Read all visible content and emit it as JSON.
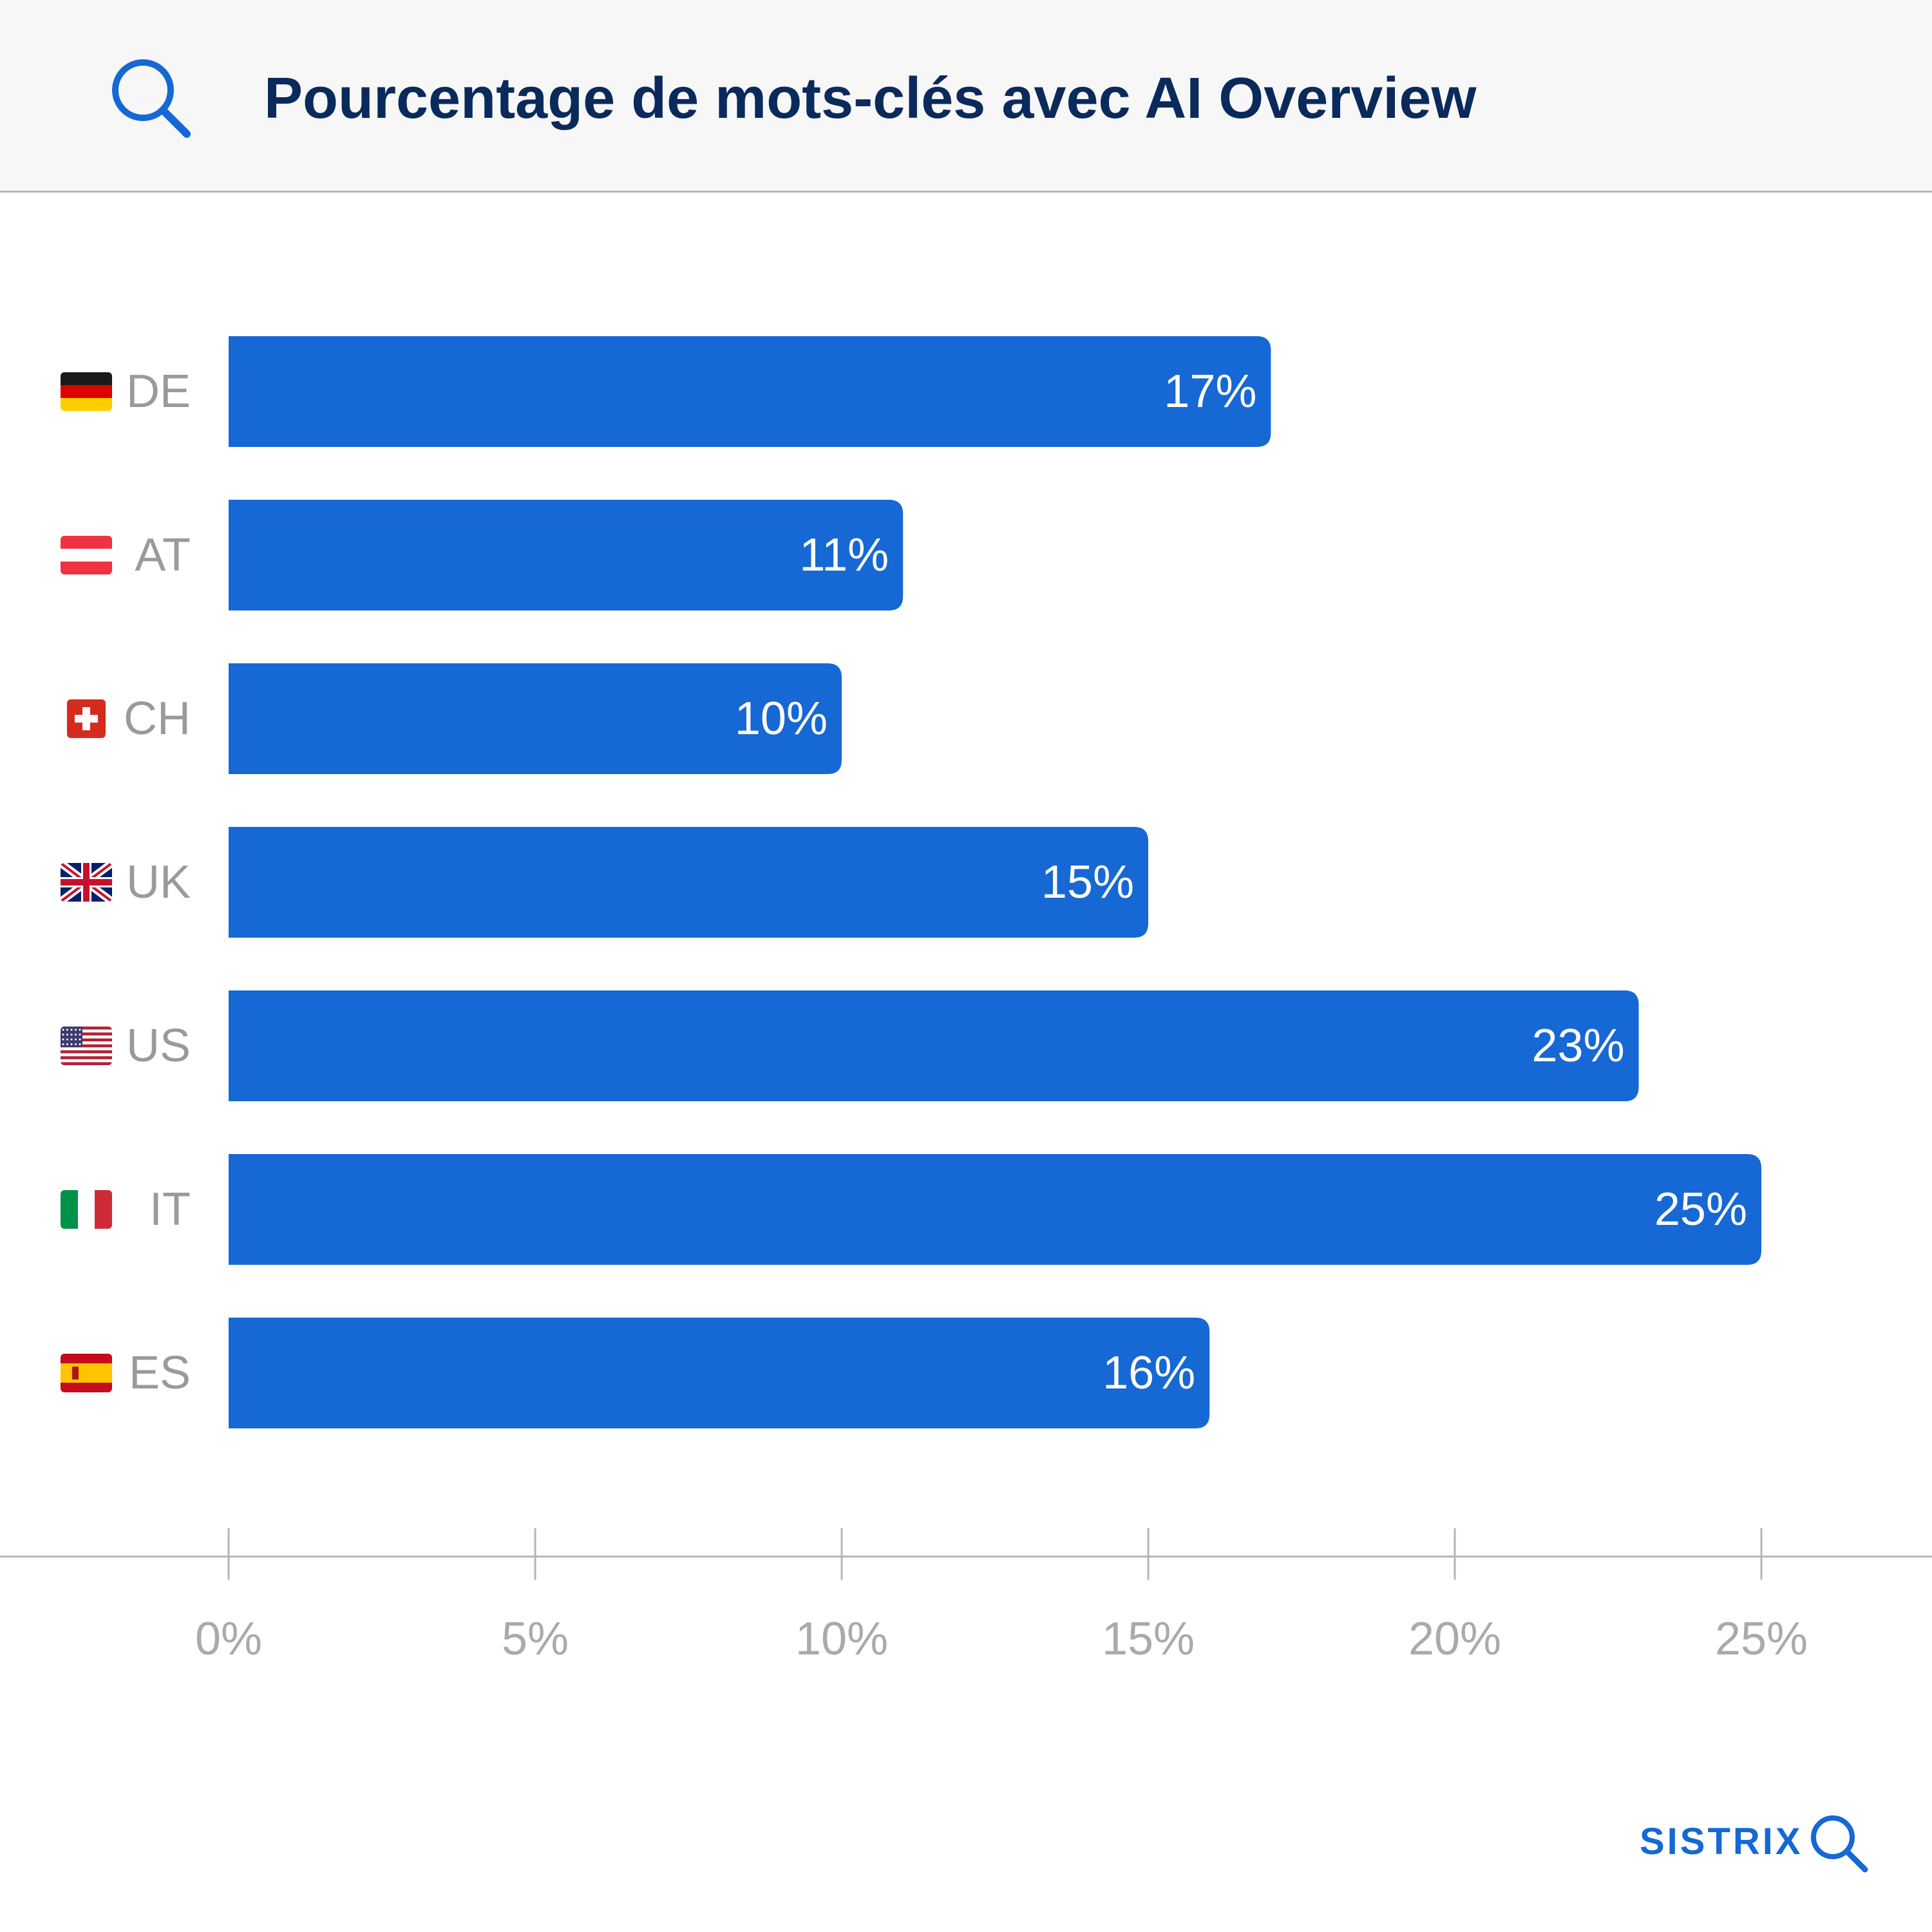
{
  "header": {
    "title": "Pourcentage de mots-clés avec AI Overview",
    "icon": "search-icon"
  },
  "chart_data": {
    "type": "bar",
    "orientation": "horizontal",
    "categories": [
      "DE",
      "AT",
      "CH",
      "UK",
      "US",
      "IT",
      "ES"
    ],
    "flags": [
      "germany-flag-icon",
      "austria-flag-icon",
      "switzerland-flag-icon",
      "uk-flag-icon",
      "us-flag-icon",
      "italy-flag-icon",
      "spain-flag-icon"
    ],
    "values": [
      17,
      11,
      10,
      15,
      23,
      25,
      16
    ],
    "value_labels": [
      "17%",
      "11%",
      "10%",
      "15%",
      "23%",
      "25%",
      "16%"
    ],
    "x_ticks": [
      0,
      5,
      10,
      15,
      20,
      25
    ],
    "x_tick_labels": [
      "0%",
      "5%",
      "10%",
      "15%",
      "20%",
      "25%"
    ],
    "xlim": [
      0,
      25
    ],
    "xlabel": "",
    "ylabel": "",
    "grid": false,
    "legend": "none",
    "colors": {
      "bar": "#1668d4",
      "category_label": "#9a9a9a",
      "tick_label": "#aaaaaa",
      "axis": "#b5b5b5",
      "value_label": "#ffffff"
    }
  },
  "branding": {
    "name": "SISTRIX",
    "icon": "sistrix-search-icon"
  }
}
